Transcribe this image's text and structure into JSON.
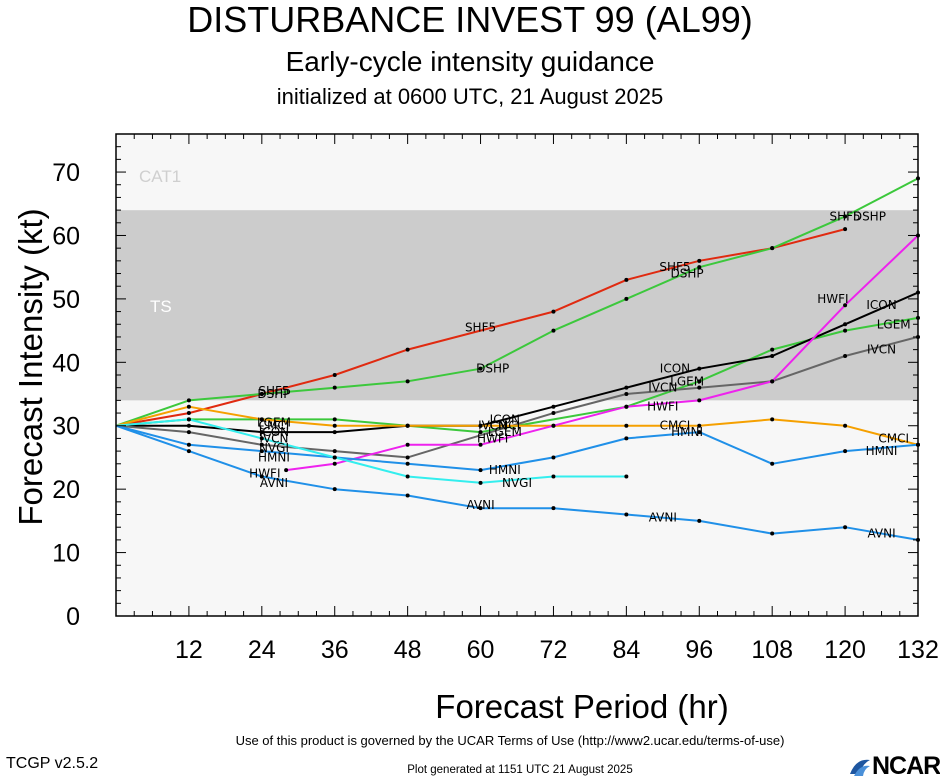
{
  "header": {
    "title": "DISTURBANCE INVEST 99 (AL99)",
    "subtitle": "Early-cycle intensity guidance",
    "init_line": "initialized at 0600 UTC, 21 August 2025"
  },
  "footer": {
    "terms": "Use of this product is governed by the UCAR Terms of Use (http://www2.ucar.edu/terms-of-use)",
    "version": "TCGP v2.5.2",
    "generated": "Plot generated at 1151 UTC   21 August 2025",
    "logo_text": "NCAR"
  },
  "chart_data": {
    "type": "line",
    "xlabel": "Forecast Period (hr)",
    "ylabel": "Forecast Intensity (kt)",
    "xlim": [
      0,
      132
    ],
    "ylim": [
      0,
      76
    ],
    "xticks": [
      12,
      24,
      36,
      48,
      60,
      72,
      84,
      96,
      108,
      120,
      132
    ],
    "yticks": [
      0,
      10,
      20,
      30,
      40,
      50,
      60,
      70
    ],
    "bands": [
      {
        "label": "TS",
        "from": 34,
        "to": 64,
        "color": "#cccccc"
      },
      {
        "label": "CAT1",
        "from": 64,
        "to": 76,
        "color": "#f7f7f7"
      }
    ],
    "below_band_color": "#f7f7f7",
    "series": [
      {
        "name": "SHF5",
        "color": "#e02a10",
        "points": [
          [
            0,
            30
          ],
          [
            12,
            32
          ],
          [
            24,
            35
          ],
          [
            36,
            38
          ],
          [
            48,
            42
          ],
          [
            72,
            48
          ],
          [
            84,
            53
          ],
          [
            96,
            56
          ],
          [
            108,
            58
          ],
          [
            120,
            61
          ]
        ],
        "labels": [
          [
            26,
            35.5
          ],
          [
            60,
            45.5
          ],
          [
            92,
            55
          ],
          [
            120,
            63
          ]
        ]
      },
      {
        "name": "DSHP",
        "color": "#3cc83c",
        "points": [
          [
            0,
            30
          ],
          [
            12,
            34
          ],
          [
            24,
            35
          ],
          [
            36,
            36
          ],
          [
            48,
            37
          ],
          [
            60,
            39
          ],
          [
            72,
            45
          ],
          [
            84,
            50
          ],
          [
            96,
            55
          ],
          [
            108,
            58
          ],
          [
            120,
            63
          ],
          [
            132,
            69
          ]
        ],
        "labels": [
          [
            26,
            35
          ],
          [
            62,
            39
          ],
          [
            94,
            54
          ],
          [
            124,
            63
          ]
        ]
      },
      {
        "name": "LGEM",
        "color": "#3cc83c",
        "points": [
          [
            0,
            30
          ],
          [
            12,
            31
          ],
          [
            24,
            31
          ],
          [
            36,
            31
          ],
          [
            48,
            30
          ],
          [
            60,
            29
          ],
          [
            84,
            33
          ],
          [
            96,
            37
          ],
          [
            108,
            42
          ],
          [
            120,
            45
          ],
          [
            132,
            47
          ]
        ],
        "labels": [
          [
            26,
            30.5
          ],
          [
            64,
            29
          ],
          [
            94,
            37
          ],
          [
            128,
            46
          ]
        ]
      },
      {
        "name": "ICON",
        "color": "#000000",
        "points": [
          [
            0,
            30
          ],
          [
            12,
            30
          ],
          [
            24,
            29
          ],
          [
            36,
            29
          ],
          [
            48,
            30
          ],
          [
            60,
            30
          ],
          [
            72,
            33
          ],
          [
            84,
            36
          ],
          [
            96,
            39
          ],
          [
            108,
            41
          ],
          [
            120,
            46
          ],
          [
            132,
            51
          ]
        ],
        "labels": [
          [
            26,
            29
          ],
          [
            64,
            31
          ],
          [
            92,
            39
          ],
          [
            126,
            49
          ]
        ]
      },
      {
        "name": "IVCN",
        "color": "#666666",
        "points": [
          [
            0,
            30
          ],
          [
            12,
            29
          ],
          [
            24,
            27
          ],
          [
            36,
            26
          ],
          [
            48,
            25
          ],
          [
            72,
            32
          ],
          [
            84,
            35
          ],
          [
            96,
            36
          ],
          [
            108,
            37
          ],
          [
            120,
            41
          ],
          [
            132,
            44
          ]
        ],
        "labels": [
          [
            26,
            28
          ],
          [
            62,
            30
          ],
          [
            90,
            36
          ],
          [
            126,
            42
          ]
        ]
      },
      {
        "name": "CMCI",
        "color": "#f5a000",
        "points": [
          [
            0,
            30
          ],
          [
            12,
            33
          ],
          [
            24,
            31
          ],
          [
            36,
            30
          ],
          [
            48,
            30
          ],
          [
            60,
            30
          ],
          [
            72,
            30
          ],
          [
            84,
            30
          ],
          [
            96,
            30
          ],
          [
            108,
            31
          ],
          [
            120,
            30
          ],
          [
            132,
            27
          ]
        ],
        "labels": [
          [
            26,
            30
          ],
          [
            64,
            30
          ],
          [
            92,
            30
          ],
          [
            128,
            28
          ]
        ]
      },
      {
        "name": "HWFI",
        "color": "#ee22ee",
        "points": [
          [
            28,
            23
          ],
          [
            36,
            24
          ],
          [
            48,
            27
          ],
          [
            60,
            27
          ],
          [
            72,
            30
          ],
          [
            84,
            33
          ],
          [
            96,
            34
          ],
          [
            108,
            37
          ],
          [
            120,
            49
          ],
          [
            132,
            60
          ]
        ],
        "labels": [
          [
            24.5,
            22.5
          ],
          [
            62,
            28
          ],
          [
            90,
            33
          ],
          [
            118,
            50
          ]
        ]
      },
      {
        "name": "HMNI",
        "color": "#2090e8",
        "points": [
          [
            0,
            30
          ],
          [
            12,
            27
          ],
          [
            24,
            26
          ],
          [
            36,
            25
          ],
          [
            48,
            24
          ],
          [
            60,
            23
          ],
          [
            72,
            25
          ],
          [
            84,
            28
          ],
          [
            96,
            29
          ],
          [
            108,
            24
          ],
          [
            120,
            26
          ],
          [
            132,
            27
          ]
        ],
        "labels": [
          [
            26,
            25
          ],
          [
            64,
            23
          ],
          [
            94,
            29
          ],
          [
            126,
            26
          ]
        ]
      },
      {
        "name": "NVGI",
        "color": "#33eeee",
        "points": [
          [
            0,
            30
          ],
          [
            12,
            31
          ],
          [
            24,
            28
          ],
          [
            36,
            25
          ],
          [
            48,
            22
          ],
          [
            60,
            21
          ],
          [
            72,
            22
          ],
          [
            84,
            22
          ]
        ],
        "labels": [
          [
            26,
            26.5
          ],
          [
            66,
            21
          ]
        ]
      },
      {
        "name": "AVNI",
        "color": "#2090e8",
        "points": [
          [
            0,
            30
          ],
          [
            12,
            26
          ],
          [
            24,
            22
          ],
          [
            36,
            20
          ],
          [
            48,
            19
          ],
          [
            60,
            17
          ],
          [
            72,
            17
          ],
          [
            84,
            16
          ],
          [
            96,
            15
          ],
          [
            108,
            13
          ],
          [
            120,
            14
          ],
          [
            132,
            12
          ]
        ],
        "labels": [
          [
            26,
            21
          ],
          [
            60,
            17.5
          ],
          [
            90,
            15.5
          ],
          [
            126,
            13
          ]
        ]
      }
    ]
  }
}
